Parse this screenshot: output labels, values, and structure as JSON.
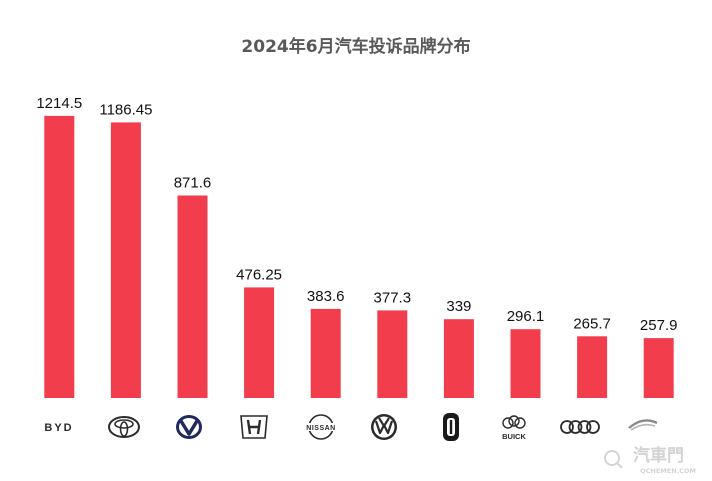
{
  "chart_data": {
    "type": "bar",
    "title": "2024年6月汽车投诉品牌分布",
    "categories": [
      "BYD",
      "Toyota",
      "Changan",
      "Honda",
      "Nissan",
      "Volkswagen",
      "Li Auto",
      "Buick",
      "Audi",
      "Geely"
    ],
    "values": [
      1214.5,
      1186.45,
      871.6,
      476.25,
      383.6,
      377.3,
      339,
      296.1,
      265.7,
      257.9
    ],
    "value_labels": [
      "1214.5",
      "1186.45",
      "871.6",
      "476.25",
      "383.6",
      "377.3",
      "339",
      "296.1",
      "265.7",
      "257.9"
    ],
    "ylim": [
      0,
      1300
    ],
    "grid": false,
    "legend": "none",
    "bar_color": "#f23d4c"
  },
  "logos": {
    "byd_text": "BYD",
    "nissan_text": "NISSAN",
    "buick_text": "BUICK"
  },
  "watermark": {
    "brand": "汽車門",
    "site": "QCHEMEN.COM"
  }
}
